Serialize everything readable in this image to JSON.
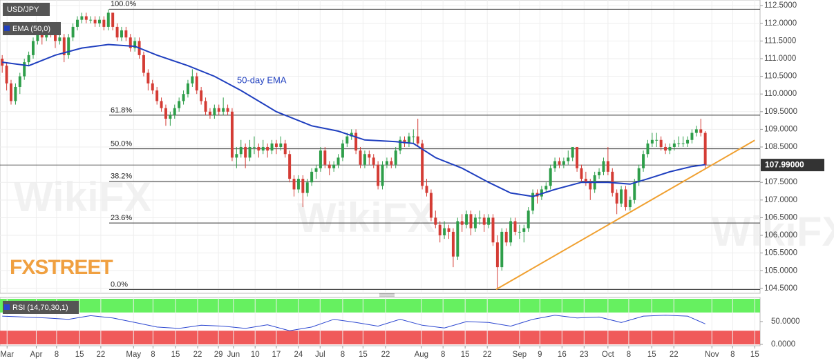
{
  "chart_data": {
    "type": "candlestick",
    "title": "USD/JPY",
    "up_color": "#2e9e4a",
    "down_color": "#d43c35",
    "brand": "FXSTREET",
    "watermark": "WikiFX",
    "xlim": [
      -0.5,
      171.4
    ],
    "xticks": [
      {
        "value": 1.1,
        "label": "Mar"
      },
      {
        "value": 7.7,
        "label": "Apr"
      },
      {
        "value": 12.3,
        "label": "8"
      },
      {
        "value": 17.5,
        "label": "15"
      },
      {
        "value": 22.3,
        "label": "22"
      },
      {
        "value": 29.7,
        "label": "May"
      },
      {
        "value": 34.1,
        "label": "8"
      },
      {
        "value": 39.2,
        "label": "15"
      },
      {
        "value": 44.2,
        "label": "22"
      },
      {
        "value": 48.9,
        "label": "29"
      },
      {
        "value": 52.3,
        "label": "Jun"
      },
      {
        "value": 57.2,
        "label": "10"
      },
      {
        "value": 62,
        "label": "17"
      },
      {
        "value": 67,
        "label": "24"
      },
      {
        "value": 71.9,
        "label": "Jul"
      },
      {
        "value": 77,
        "label": "8"
      },
      {
        "value": 81.6,
        "label": "15"
      },
      {
        "value": 86.7,
        "label": "22"
      },
      {
        "value": 94.8,
        "label": "Aug"
      },
      {
        "value": 99.7,
        "label": "8"
      },
      {
        "value": 104.7,
        "label": "15"
      },
      {
        "value": 109.7,
        "label": "22"
      },
      {
        "value": 117,
        "label": "Sep"
      },
      {
        "value": 121.6,
        "label": "9"
      },
      {
        "value": 126.6,
        "label": "16"
      },
      {
        "value": 131.6,
        "label": "23"
      },
      {
        "value": 137,
        "label": "Oct"
      },
      {
        "value": 141.7,
        "label": "8"
      },
      {
        "value": 146.9,
        "label": "15"
      },
      {
        "value": 151.9,
        "label": "22"
      },
      {
        "value": 160.5,
        "label": "Nov"
      },
      {
        "value": 165.2,
        "label": "8"
      },
      {
        "value": 170.2,
        "label": "15"
      }
    ],
    "ylim": [
      104.36,
      112.66
    ],
    "yticks": [
      {
        "value": 112.5,
        "label": "112.5000"
      },
      {
        "value": 112,
        "label": "112.0000"
      },
      {
        "value": 111.5,
        "label": "111.5000"
      },
      {
        "value": 111,
        "label": "111.0000"
      },
      {
        "value": 110.5,
        "label": "110.5000"
      },
      {
        "value": 110,
        "label": "110.0000"
      },
      {
        "value": 109.5,
        "label": "109.5000"
      },
      {
        "value": 109,
        "label": "109.0000"
      },
      {
        "value": 108.5,
        "label": "108.5000"
      },
      {
        "value": 107.5,
        "label": "107.5000"
      },
      {
        "value": 107,
        "label": "107.0000"
      },
      {
        "value": 106.5,
        "label": "106.5000"
      },
      {
        "value": 106,
        "label": "106.0000"
      },
      {
        "value": 105.5,
        "label": "105.5000"
      },
      {
        "value": 105,
        "label": "105.0000"
      },
      {
        "value": 104.5,
        "label": "104.5000"
      }
    ],
    "grid": true,
    "last_price": {
      "value": 107.99,
      "label": "107.99000"
    },
    "candles": [
      [
        111.0,
        111.1,
        110.6,
        110.8
      ],
      [
        110.8,
        110.9,
        110.1,
        110.3
      ],
      [
        110.3,
        110.4,
        109.7,
        109.8
      ],
      [
        109.8,
        110.3,
        109.7,
        110.2
      ],
      [
        110.2,
        110.6,
        110.0,
        110.5
      ],
      [
        110.5,
        111.0,
        110.4,
        110.9
      ],
      [
        110.9,
        111.2,
        110.8,
        111.1
      ],
      [
        111.1,
        111.6,
        111.0,
        111.5
      ],
      [
        111.5,
        111.9,
        111.4,
        111.8
      ],
      [
        111.8,
        111.9,
        111.4,
        111.6
      ],
      [
        111.6,
        112.0,
        111.5,
        111.9
      ],
      [
        111.9,
        112.0,
        111.6,
        111.7
      ],
      [
        111.7,
        111.8,
        111.3,
        111.5
      ],
      [
        111.5,
        111.8,
        111.4,
        111.6
      ],
      [
        111.6,
        111.7,
        110.9,
        111.1
      ],
      [
        111.1,
        111.7,
        111.0,
        111.6
      ],
      [
        111.6,
        112.0,
        111.5,
        111.9
      ],
      [
        111.9,
        112.2,
        111.8,
        112.1
      ],
      [
        112.1,
        112.3,
        112.0,
        112.2
      ],
      [
        112.2,
        112.3,
        112.0,
        112.1
      ],
      [
        112.1,
        112.2,
        112.0,
        112.1
      ],
      [
        112.1,
        112.2,
        111.9,
        112.0
      ],
      [
        112.0,
        112.2,
        111.9,
        112.1
      ],
      [
        112.1,
        112.2,
        111.8,
        111.9
      ],
      [
        111.9,
        112.4,
        111.8,
        112.3
      ],
      [
        112.3,
        112.3,
        111.8,
        111.9
      ],
      [
        111.9,
        112.0,
        111.5,
        111.6
      ],
      [
        111.6,
        111.9,
        111.5,
        111.8
      ],
      [
        111.8,
        111.9,
        111.5,
        111.6
      ],
      [
        111.6,
        111.7,
        111.2,
        111.3
      ],
      [
        111.3,
        111.6,
        111.2,
        111.5
      ],
      [
        111.5,
        111.6,
        111.0,
        111.1
      ],
      [
        111.1,
        111.2,
        110.5,
        110.6
      ],
      [
        110.6,
        110.7,
        110.1,
        110.3
      ],
      [
        110.3,
        110.4,
        110.0,
        110.1
      ],
      [
        110.1,
        110.2,
        109.7,
        109.8
      ],
      [
        109.8,
        109.9,
        109.5,
        109.6
      ],
      [
        109.6,
        109.7,
        109.1,
        109.3
      ],
      [
        109.3,
        109.5,
        109.1,
        109.4
      ],
      [
        109.4,
        109.7,
        109.3,
        109.6
      ],
      [
        109.6,
        109.9,
        109.5,
        109.8
      ],
      [
        109.8,
        110.1,
        109.7,
        110.0
      ],
      [
        110.0,
        110.4,
        109.9,
        110.3
      ],
      [
        110.3,
        110.7,
        110.2,
        110.5
      ],
      [
        110.5,
        110.6,
        110.0,
        110.1
      ],
      [
        110.1,
        110.2,
        109.7,
        109.8
      ],
      [
        109.8,
        109.9,
        109.4,
        109.5
      ],
      [
        109.5,
        109.6,
        109.3,
        109.4
      ],
      [
        109.4,
        109.7,
        109.3,
        109.6
      ],
      [
        109.6,
        109.7,
        109.4,
        109.5
      ],
      [
        109.5,
        109.9,
        109.4,
        109.6
      ],
      [
        109.6,
        109.7,
        109.4,
        109.5
      ],
      [
        109.5,
        109.6,
        108.1,
        108.2
      ],
      [
        108.2,
        108.5,
        107.9,
        108.3
      ],
      [
        108.3,
        108.7,
        108.2,
        108.5
      ],
      [
        108.5,
        108.6,
        107.9,
        108.2
      ],
      [
        108.2,
        108.7,
        108.1,
        108.5
      ],
      [
        108.5,
        108.8,
        108.3,
        108.5
      ],
      [
        108.5,
        108.6,
        108.2,
        108.4
      ],
      [
        108.4,
        108.7,
        108.3,
        108.5
      ],
      [
        108.5,
        108.6,
        108.2,
        108.4
      ],
      [
        108.4,
        108.7,
        108.3,
        108.6
      ],
      [
        108.6,
        108.7,
        108.3,
        108.5
      ],
      [
        108.5,
        108.8,
        108.4,
        108.6
      ],
      [
        108.6,
        108.7,
        108.2,
        108.3
      ],
      [
        108.3,
        108.4,
        107.5,
        107.6
      ],
      [
        107.6,
        107.7,
        107.1,
        107.3
      ],
      [
        107.3,
        107.7,
        107.2,
        107.6
      ],
      [
        107.6,
        107.7,
        106.8,
        107.2
      ],
      [
        107.2,
        107.6,
        107.1,
        107.5
      ],
      [
        107.5,
        107.9,
        107.4,
        107.8
      ],
      [
        107.8,
        108.0,
        107.6,
        107.9
      ],
      [
        107.9,
        108.5,
        107.8,
        108.4
      ],
      [
        108.4,
        108.5,
        107.9,
        108.0
      ],
      [
        108.0,
        108.1,
        107.7,
        107.9
      ],
      [
        107.9,
        108.1,
        107.8,
        108.0
      ],
      [
        108.0,
        108.3,
        107.9,
        108.2
      ],
      [
        108.2,
        108.7,
        108.1,
        108.6
      ],
      [
        108.6,
        108.9,
        108.5,
        108.8
      ],
      [
        108.8,
        109.0,
        108.7,
        108.9
      ],
      [
        108.9,
        109.0,
        108.3,
        108.4
      ],
      [
        108.4,
        108.5,
        107.9,
        108.0
      ],
      [
        108.0,
        108.4,
        107.9,
        108.3
      ],
      [
        108.3,
        108.4,
        108.0,
        108.2
      ],
      [
        108.2,
        108.3,
        107.9,
        108.0
      ],
      [
        108.0,
        108.1,
        107.3,
        107.4
      ],
      [
        107.4,
        108.1,
        107.3,
        108.0
      ],
      [
        108.0,
        108.2,
        107.9,
        108.1
      ],
      [
        108.1,
        108.2,
        107.9,
        108.0
      ],
      [
        108.0,
        108.5,
        107.9,
        108.4
      ],
      [
        108.4,
        108.8,
        108.3,
        108.7
      ],
      [
        108.7,
        108.8,
        108.5,
        108.6
      ],
      [
        108.6,
        108.9,
        108.5,
        108.8
      ],
      [
        108.8,
        109.0,
        108.6,
        108.8
      ],
      [
        108.8,
        109.3,
        108.5,
        108.6
      ],
      [
        108.6,
        108.7,
        107.3,
        107.4
      ],
      [
        107.4,
        107.6,
        107.1,
        107.2
      ],
      [
        107.2,
        107.3,
        106.4,
        106.5
      ],
      [
        106.5,
        106.7,
        106.2,
        106.3
      ],
      [
        106.3,
        106.4,
        105.8,
        106.0
      ],
      [
        106.0,
        106.4,
        105.9,
        106.2
      ],
      [
        106.2,
        106.3,
        105.9,
        106.1
      ],
      [
        106.1,
        106.2,
        105.1,
        105.4
      ],
      [
        105.4,
        106.5,
        105.3,
        106.4
      ],
      [
        106.4,
        106.6,
        106.1,
        106.3
      ],
      [
        106.3,
        106.7,
        106.2,
        106.6
      ],
      [
        106.6,
        106.7,
        106.0,
        106.2
      ],
      [
        106.2,
        106.6,
        106.1,
        106.5
      ],
      [
        106.5,
        106.7,
        106.3,
        106.5
      ],
      [
        106.5,
        106.6,
        106.1,
        106.3
      ],
      [
        106.3,
        106.6,
        106.2,
        106.5
      ],
      [
        106.5,
        106.6,
        105.7,
        105.8
      ],
      [
        105.8,
        106.0,
        104.5,
        105.1
      ],
      [
        105.1,
        106.2,
        105.0,
        106.1
      ],
      [
        106.1,
        106.2,
        105.7,
        105.8
      ],
      [
        105.8,
        106.5,
        105.7,
        106.4
      ],
      [
        106.4,
        106.5,
        106.0,
        106.1
      ],
      [
        106.1,
        106.3,
        105.9,
        106.1
      ],
      [
        106.1,
        106.3,
        105.8,
        106.2
      ],
      [
        106.2,
        106.8,
        106.1,
        106.7
      ],
      [
        106.7,
        107.3,
        106.6,
        107.2
      ],
      [
        107.2,
        107.3,
        106.9,
        107.1
      ],
      [
        107.1,
        107.4,
        107.0,
        107.3
      ],
      [
        107.3,
        107.5,
        107.2,
        107.4
      ],
      [
        107.4,
        108.0,
        107.3,
        107.9
      ],
      [
        107.9,
        108.2,
        107.8,
        108.1
      ],
      [
        108.1,
        108.2,
        107.9,
        108.0
      ],
      [
        108.0,
        108.2,
        107.9,
        108.1
      ],
      [
        108.1,
        108.4,
        108.0,
        108.2
      ],
      [
        108.2,
        108.5,
        108.1,
        108.5
      ],
      [
        108.5,
        108.5,
        107.8,
        107.9
      ],
      [
        107.9,
        108.0,
        107.5,
        107.6
      ],
      [
        107.6,
        107.8,
        107.4,
        107.5
      ],
      [
        107.5,
        107.6,
        107.0,
        107.3
      ],
      [
        107.3,
        107.8,
        107.2,
        107.7
      ],
      [
        107.7,
        107.9,
        107.6,
        107.8
      ],
      [
        107.8,
        108.2,
        107.7,
        108.1
      ],
      [
        108.1,
        108.5,
        107.7,
        107.8
      ],
      [
        107.8,
        107.9,
        107.1,
        107.2
      ],
      [
        107.2,
        107.3,
        106.6,
        106.9
      ],
      [
        106.9,
        107.4,
        106.8,
        107.3
      ],
      [
        107.3,
        107.4,
        106.7,
        106.8
      ],
      [
        106.8,
        107.1,
        106.7,
        107.0
      ],
      [
        107.0,
        107.6,
        106.9,
        107.5
      ],
      [
        107.5,
        108.0,
        107.4,
        107.9
      ],
      [
        107.9,
        108.4,
        107.8,
        108.3
      ],
      [
        108.3,
        108.7,
        108.2,
        108.6
      ],
      [
        108.6,
        108.9,
        108.5,
        108.7
      ],
      [
        108.7,
        108.9,
        108.5,
        108.7
      ],
      [
        108.7,
        108.8,
        108.4,
        108.5
      ],
      [
        108.5,
        108.6,
        108.3,
        108.4
      ],
      [
        108.4,
        108.6,
        108.3,
        108.5
      ],
      [
        108.5,
        108.7,
        108.4,
        108.6
      ],
      [
        108.6,
        108.8,
        108.5,
        108.6
      ],
      [
        108.6,
        108.8,
        108.5,
        108.6
      ],
      [
        108.6,
        108.8,
        108.5,
        108.7
      ],
      [
        108.7,
        109.0,
        108.6,
        108.9
      ],
      [
        108.9,
        109.1,
        108.8,
        109.0
      ],
      [
        109.0,
        109.3,
        108.8,
        108.9
      ],
      [
        108.9,
        108.95,
        107.9,
        107.99
      ]
    ],
    "ema": {
      "name": "EMA (50,0)",
      "annotation": "50-day EMA",
      "color": "#1f3fbf",
      "x": [
        0,
        6,
        12,
        18,
        24,
        30,
        35,
        42,
        48,
        54,
        62,
        70,
        76,
        82,
        89,
        93,
        98,
        104,
        110,
        115,
        120,
        125,
        131,
        137,
        142,
        146,
        151,
        156,
        159
      ],
      "values": [
        110.9,
        110.8,
        111.1,
        111.3,
        111.4,
        111.35,
        111.1,
        110.8,
        110.5,
        110.1,
        109.5,
        109.1,
        108.95,
        108.7,
        108.65,
        108.6,
        108.2,
        107.9,
        107.5,
        107.2,
        107.1,
        107.3,
        107.5,
        107.5,
        107.45,
        107.6,
        107.8,
        107.95,
        108.0
      ]
    },
    "trendline": {
      "color": "#f0a030",
      "x": [
        111.7,
        170.2
      ],
      "values": [
        104.47,
        108.69
      ]
    },
    "levels": [
      {
        "label": "100.0%",
        "value": 112.4
      },
      {
        "label": "61.8%",
        "value": 109.4
      },
      {
        "label": "50.0%",
        "value": 108.45
      },
      {
        "label": "38.2%",
        "value": 107.53
      },
      {
        "label": "23.6%",
        "value": 106.35
      },
      {
        "label": "0.0%",
        "value": 104.47
      }
    ],
    "rsi": {
      "name": "RSI (14,70,30,1)",
      "color": "#2a45d0",
      "ylim": [
        0,
        100
      ],
      "yticks": [
        {
          "value": 50,
          "label": "50.0000"
        },
        {
          "value": 0,
          "label": "0.0000"
        }
      ],
      "overbought": 70,
      "oversold": 30,
      "x": [
        0,
        5,
        10,
        15,
        20,
        25,
        30,
        35,
        40,
        45,
        50,
        55,
        60,
        65,
        70,
        75,
        80,
        85,
        90,
        95,
        100,
        105,
        110,
        115,
        120,
        125,
        130,
        135,
        140,
        145,
        150,
        155,
        159
      ],
      "values": [
        62,
        60,
        58,
        55,
        63,
        58,
        48,
        38,
        35,
        42,
        40,
        35,
        43,
        30,
        38,
        55,
        48,
        40,
        55,
        42,
        36,
        50,
        48,
        40,
        55,
        64,
        58,
        60,
        48,
        62,
        64,
        62,
        45
      ]
    }
  }
}
